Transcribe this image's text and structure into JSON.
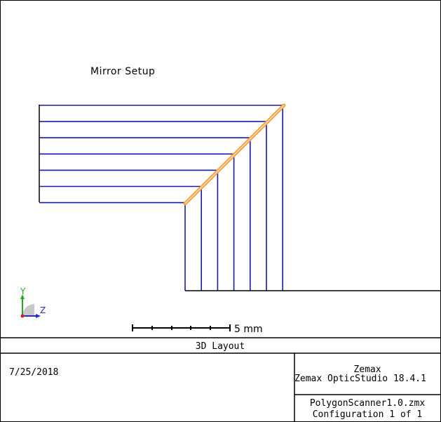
{
  "diagram": {
    "title": "Mirror Setup",
    "scale_bar_label": "5 mm",
    "axis_labels": {
      "y": "Y",
      "z": "Z"
    },
    "rays": {
      "count": 7,
      "color": "#1a1aa8"
    },
    "mirror": {
      "color": "#f2a040",
      "edge_color": "#d07a20"
    }
  },
  "footer": {
    "plot_type": "3D Layout",
    "date": "7/25/2018",
    "company": "Zemax",
    "product": "Zemax OpticStudio 18.4.1",
    "file_name": "PolygonScanner1.0.zmx",
    "configuration": "Configuration 1 of 1"
  }
}
